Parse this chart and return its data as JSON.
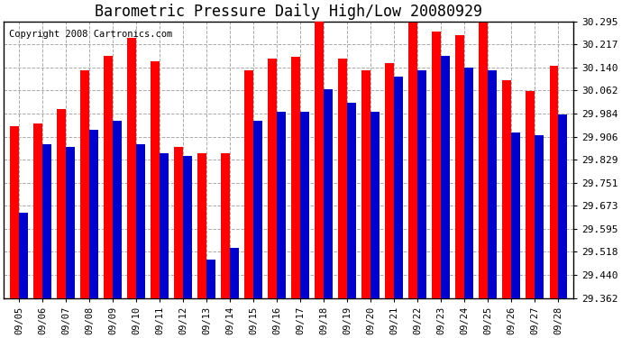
{
  "title": "Barometric Pressure Daily High/Low 20080929",
  "copyright": "Copyright 2008 Cartronics.com",
  "dates": [
    "09/05",
    "09/06",
    "09/07",
    "09/08",
    "09/09",
    "09/10",
    "09/11",
    "09/12",
    "09/13",
    "09/14",
    "09/15",
    "09/16",
    "09/17",
    "09/18",
    "09/19",
    "09/20",
    "09/21",
    "09/22",
    "09/23",
    "09/24",
    "09/25",
    "09/26",
    "09/27",
    "09/28"
  ],
  "highs": [
    29.94,
    29.95,
    30.0,
    30.13,
    30.18,
    30.24,
    30.16,
    29.87,
    29.85,
    29.85,
    30.13,
    30.17,
    30.175,
    30.31,
    30.17,
    30.13,
    30.155,
    30.29,
    30.26,
    30.25,
    30.29,
    30.095,
    30.06,
    30.145
  ],
  "lows": [
    29.65,
    29.88,
    29.87,
    29.93,
    29.96,
    29.88,
    29.85,
    29.84,
    29.49,
    29.53,
    29.96,
    29.99,
    29.99,
    30.065,
    30.02,
    29.99,
    30.11,
    30.13,
    30.18,
    30.14,
    30.13,
    29.92,
    29.91,
    29.98
  ],
  "high_color": "#ff0000",
  "low_color": "#0000cc",
  "ylim_min": 29.362,
  "ylim_max": 30.295,
  "yticks": [
    29.362,
    29.44,
    29.518,
    29.595,
    29.673,
    29.751,
    29.829,
    29.906,
    29.984,
    30.062,
    30.14,
    30.217,
    30.295
  ],
  "bg_color": "#ffffff",
  "grid_color": "#aaaaaa",
  "title_fontsize": 12,
  "copyright_fontsize": 7.5
}
